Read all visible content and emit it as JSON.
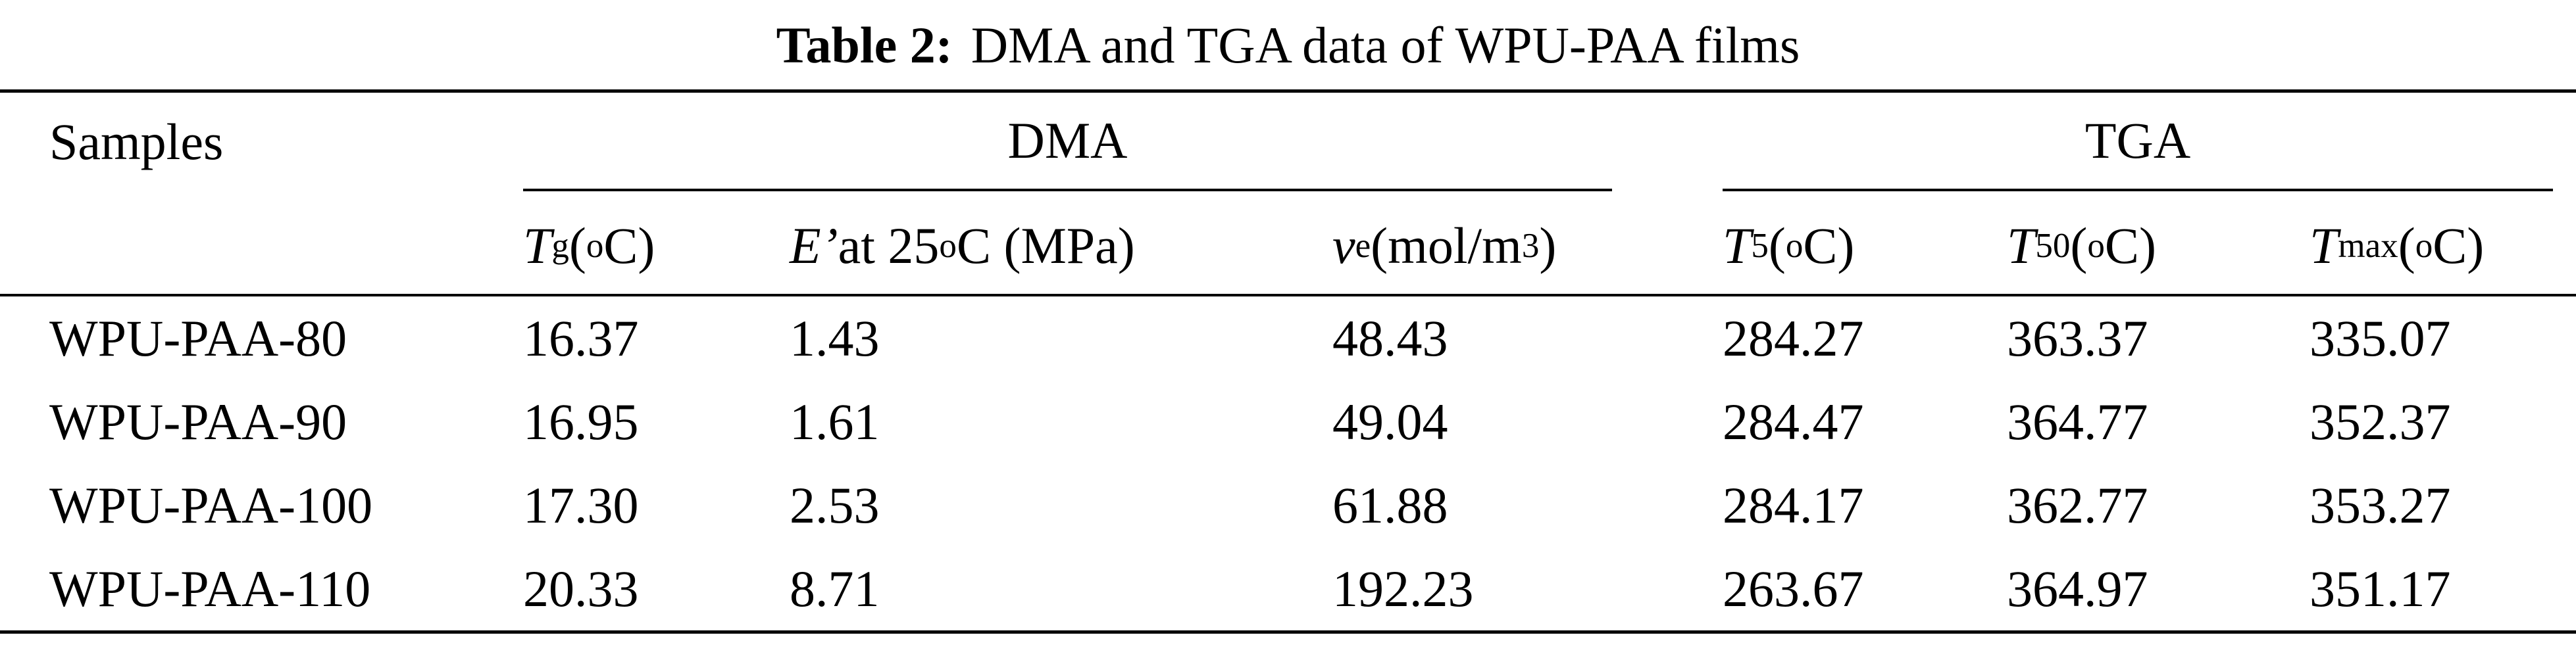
{
  "title": {
    "label": "Table 2:",
    "text": "DMA and TGA data of WPU-PAA films"
  },
  "groups": {
    "samples": "Samples",
    "dma": "DMA",
    "tga": "TGA"
  },
  "columns": {
    "tg": {
      "sym": "T",
      "sub": "g",
      "pre": " (",
      "sup": "o",
      "post": "C)"
    },
    "e25": {
      "sym": "E’",
      "mid": " at 25",
      "sup": "o",
      "post": "C (MPa)"
    },
    "ve": {
      "sym": "v",
      "sub": "e",
      "pre": " (mol/m",
      "sup": "3",
      "post": ")"
    },
    "t5": {
      "sym": "T",
      "sub": "5",
      "pre": " (",
      "sup": "o",
      "post": "C)"
    },
    "t50": {
      "sym": "T",
      "sub": "50",
      "pre": " (",
      "sup": "o",
      "post": "C)"
    },
    "tmax": {
      "sym": "T",
      "sub": "max",
      "pre": " (",
      "sup": "o",
      "post": "C)"
    }
  },
  "rows": [
    {
      "sample": "WPU-PAA-80",
      "tg": "16.37",
      "e25": "1.43",
      "ve": "48.43",
      "t5": "284.27",
      "t50": "363.37",
      "tmax": "335.07"
    },
    {
      "sample": "WPU-PAA-90",
      "tg": "16.95",
      "e25": "1.61",
      "ve": "49.04",
      "t5": "284.47",
      "t50": "364.77",
      "tmax": "352.37"
    },
    {
      "sample": "WPU-PAA-100",
      "tg": "17.30",
      "e25": "2.53",
      "ve": "61.88",
      "t5": "284.17",
      "t50": "362.77",
      "tmax": "353.27"
    },
    {
      "sample": "WPU-PAA-110",
      "tg": "20.33",
      "e25": "8.71",
      "ve": "192.23",
      "t5": "263.67",
      "t50": "364.97",
      "tmax": "351.17"
    }
  ]
}
